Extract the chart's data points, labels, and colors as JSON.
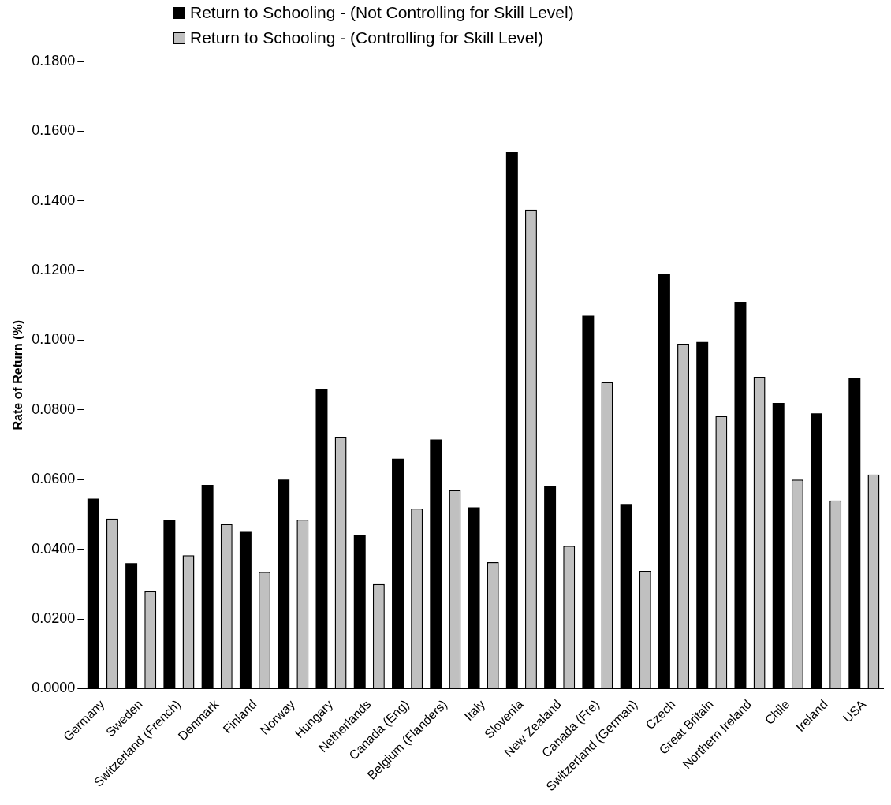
{
  "chart_data": {
    "type": "bar",
    "ylabel": "Rate of Return (%)",
    "categories": [
      "Germany",
      "Sweden",
      "Switzerland (French)",
      "Denmark",
      "Finland",
      "Norway",
      "Hungary",
      "Netherlands",
      "Canada (Eng)",
      "Belgium (Flanders)",
      "Italy",
      "Slovenia",
      "New Zealand",
      "Canada (Fre)",
      "Switzerland (German)",
      "Czech",
      "Great Britain",
      "Northern Ireland",
      "Chile",
      "Ireland",
      "USA"
    ],
    "series": [
      {
        "name": "Return to Schooling - (Not Controlling for Skill Level)",
        "color": "#000000",
        "values": [
          0.0545,
          0.036,
          0.0485,
          0.0585,
          0.045,
          0.06,
          0.086,
          0.044,
          0.066,
          0.0715,
          0.052,
          0.154,
          0.058,
          0.107,
          0.053,
          0.119,
          0.0995,
          0.111,
          0.082,
          0.079,
          0.089
        ]
      },
      {
        "name": "Return to Schooling - (Controlling for Skill Level)",
        "color": "#c0c0c0",
        "values": [
          0.0488,
          0.028,
          0.0383,
          0.0473,
          0.0335,
          0.0485,
          0.0723,
          0.03,
          0.0517,
          0.057,
          0.0363,
          0.1375,
          0.041,
          0.088,
          0.0338,
          0.099,
          0.0783,
          0.0895,
          0.06,
          0.054,
          0.0615
        ]
      }
    ],
    "ylim": [
      0,
      0.18
    ],
    "yticks": [
      {
        "value": 0,
        "label": "0.0000"
      },
      {
        "value": 0.02,
        "label": "0.0200"
      },
      {
        "value": 0.04,
        "label": "0.0400"
      },
      {
        "value": 0.06,
        "label": "0.0600"
      },
      {
        "value": 0.08,
        "label": "0.0800"
      },
      {
        "value": 0.1,
        "label": "0.1000"
      },
      {
        "value": 0.12,
        "label": "0.1200"
      },
      {
        "value": 0.14,
        "label": "0.1400"
      },
      {
        "value": 0.16,
        "label": "0.1600"
      },
      {
        "value": 0.18,
        "label": "0.1800"
      }
    ],
    "grid": false,
    "legend": "top left"
  }
}
